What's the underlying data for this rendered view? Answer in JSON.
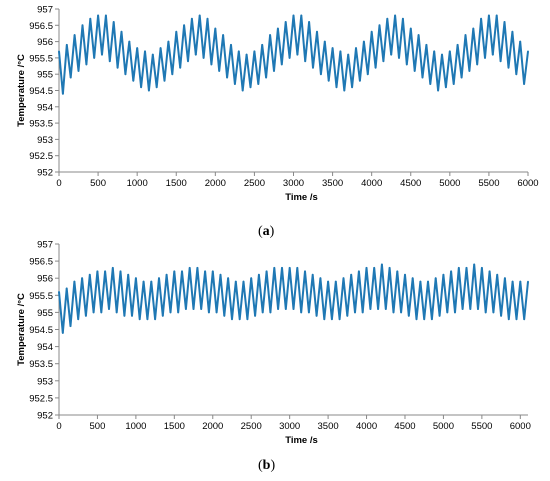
{
  "captions": [
    {
      "open": "(",
      "letter": "a",
      "close": ")"
    },
    {
      "open": "(",
      "letter": "b",
      "close": ")"
    }
  ],
  "chart_data": [
    {
      "type": "line",
      "xlabel": "Time /s",
      "ylabel": "Temperature /°C",
      "xlim": [
        0,
        6000
      ],
      "ylim": [
        952,
        957
      ],
      "xticks": [
        0,
        500,
        1000,
        1500,
        2000,
        2500,
        3000,
        3500,
        4000,
        4500,
        5000,
        5500,
        6000
      ],
      "yticks": [
        952,
        952.5,
        953,
        953.5,
        954,
        954.5,
        955,
        955.5,
        956,
        956.5,
        957
      ],
      "grid": false,
      "line_color": "#1f78b4",
      "series": [
        {
          "name": "",
          "x": [
            0,
            50,
            100,
            150,
            200,
            250,
            300,
            350,
            400,
            450,
            500,
            550,
            600,
            650,
            700,
            750,
            800,
            850,
            900,
            950,
            1000,
            1050,
            1100,
            1150,
            1200,
            1250,
            1300,
            1350,
            1400,
            1450,
            1500,
            1550,
            1600,
            1650,
            1700,
            1750,
            1800,
            1850,
            1900,
            1950,
            2000,
            2050,
            2100,
            2150,
            2200,
            2250,
            2300,
            2350,
            2400,
            2450,
            2500,
            2550,
            2600,
            2650,
            2700,
            2750,
            2800,
            2850,
            2900,
            2950,
            3000,
            3050,
            3100,
            3150,
            3200,
            3250,
            3300,
            3350,
            3400,
            3450,
            3500,
            3550,
            3600,
            3650,
            3700,
            3750,
            3800,
            3850,
            3900,
            3950,
            4000,
            4050,
            4100,
            4150,
            4200,
            4250,
            4300,
            4350,
            4400,
            4450,
            4500,
            4550,
            4600,
            4650,
            4700,
            4750,
            4800,
            4850,
            4900,
            4950,
            5000,
            5050,
            5100,
            5150,
            5200,
            5250,
            5300,
            5350,
            5400,
            5450,
            5500,
            5550,
            5600,
            5650,
            5700,
            5750,
            5800,
            5850,
            5900,
            5950,
            6000
          ],
          "y": [
            955.7,
            954.4,
            955.9,
            954.9,
            956.2,
            955.1,
            956.5,
            955.3,
            956.7,
            955.5,
            956.8,
            955.6,
            956.8,
            955.4,
            956.6,
            955.2,
            956.3,
            955.0,
            956.0,
            954.8,
            955.8,
            954.6,
            955.7,
            954.5,
            955.6,
            954.6,
            955.8,
            954.8,
            956.0,
            955.0,
            956.3,
            955.2,
            956.5,
            955.4,
            956.7,
            955.6,
            956.8,
            955.5,
            956.7,
            955.3,
            956.4,
            955.1,
            956.2,
            954.9,
            955.9,
            954.7,
            955.7,
            954.5,
            955.6,
            954.6,
            955.7,
            954.7,
            955.9,
            954.9,
            956.2,
            955.1,
            956.4,
            955.3,
            956.6,
            955.5,
            956.8,
            955.6,
            956.8,
            955.4,
            956.6,
            955.2,
            956.3,
            955.0,
            956.0,
            954.8,
            955.8,
            954.6,
            955.7,
            954.5,
            955.6,
            954.6,
            955.8,
            954.8,
            956.0,
            955.0,
            956.3,
            955.2,
            956.5,
            955.4,
            956.7,
            955.6,
            956.8,
            955.5,
            956.7,
            955.3,
            956.4,
            955.1,
            956.2,
            954.9,
            955.9,
            954.7,
            955.7,
            954.5,
            955.6,
            954.6,
            955.7,
            954.7,
            955.9,
            954.9,
            956.2,
            955.1,
            956.4,
            955.3,
            956.7,
            955.5,
            956.8,
            955.6,
            956.8,
            955.4,
            956.6,
            955.2,
            956.3,
            955.0,
            956.0,
            954.7,
            955.7
          ]
        }
      ]
    },
    {
      "type": "line",
      "xlabel": "Time /s",
      "ylabel": "Temperature /°C",
      "xlim": [
        0,
        6100
      ],
      "ylim": [
        952,
        957
      ],
      "xticks": [
        0,
        500,
        1000,
        1500,
        2000,
        2500,
        3000,
        3500,
        4000,
        4500,
        5000,
        5500,
        6000
      ],
      "yticks": [
        952,
        952.5,
        953,
        953.5,
        954,
        954.5,
        955,
        955.5,
        956,
        956.5,
        957
      ],
      "grid": false,
      "line_color": "#1f78b4",
      "series": [
        {
          "name": "",
          "x": [
            0,
            50,
            100,
            150,
            200,
            250,
            300,
            350,
            400,
            450,
            500,
            550,
            600,
            650,
            700,
            750,
            800,
            850,
            900,
            950,
            1000,
            1050,
            1100,
            1150,
            1200,
            1250,
            1300,
            1350,
            1400,
            1450,
            1500,
            1550,
            1600,
            1650,
            1700,
            1750,
            1800,
            1850,
            1900,
            1950,
            2000,
            2050,
            2100,
            2150,
            2200,
            2250,
            2300,
            2350,
            2400,
            2450,
            2500,
            2550,
            2600,
            2650,
            2700,
            2750,
            2800,
            2850,
            2900,
            2950,
            3000,
            3050,
            3100,
            3150,
            3200,
            3250,
            3300,
            3350,
            3400,
            3450,
            3500,
            3550,
            3600,
            3650,
            3700,
            3750,
            3800,
            3850,
            3900,
            3950,
            4000,
            4050,
            4100,
            4150,
            4200,
            4250,
            4300,
            4350,
            4400,
            4450,
            4500,
            4550,
            4600,
            4650,
            4700,
            4750,
            4800,
            4850,
            4900,
            4950,
            5000,
            5050,
            5100,
            5150,
            5200,
            5250,
            5300,
            5350,
            5400,
            5450,
            5500,
            5550,
            5600,
            5650,
            5700,
            5750,
            5800,
            5850,
            5900,
            5950,
            6000,
            6050,
            6100
          ],
          "y": [
            955.6,
            954.4,
            955.7,
            954.6,
            955.9,
            954.8,
            956.0,
            954.9,
            956.1,
            955.0,
            956.2,
            955.0,
            956.2,
            955.1,
            956.3,
            955.0,
            956.2,
            954.9,
            956.1,
            954.9,
            956.0,
            954.8,
            955.9,
            954.8,
            955.9,
            954.8,
            956.0,
            954.9,
            956.1,
            955.0,
            956.2,
            955.0,
            956.2,
            955.1,
            956.3,
            955.1,
            956.3,
            955.1,
            956.2,
            955.0,
            956.2,
            955.0,
            956.1,
            954.9,
            956.0,
            954.8,
            955.9,
            954.8,
            955.9,
            954.8,
            956.0,
            954.9,
            956.1,
            955.0,
            956.2,
            955.0,
            956.3,
            955.1,
            956.3,
            955.1,
            956.3,
            955.1,
            956.3,
            955.0,
            956.2,
            955.0,
            956.1,
            954.9,
            956.0,
            954.8,
            955.9,
            954.8,
            955.9,
            954.8,
            956.0,
            954.9,
            956.1,
            955.0,
            956.2,
            955.0,
            956.3,
            955.1,
            956.3,
            955.1,
            956.4,
            955.1,
            956.3,
            955.0,
            956.2,
            955.0,
            956.1,
            954.9,
            956.0,
            954.8,
            955.9,
            954.8,
            955.9,
            954.8,
            956.0,
            954.9,
            956.1,
            955.0,
            956.2,
            955.0,
            956.3,
            955.1,
            956.3,
            955.1,
            956.4,
            955.1,
            956.3,
            955.0,
            956.2,
            955.0,
            956.1,
            954.9,
            956.0,
            954.8,
            955.9,
            954.8,
            955.9,
            954.8,
            955.9
          ]
        }
      ]
    }
  ]
}
